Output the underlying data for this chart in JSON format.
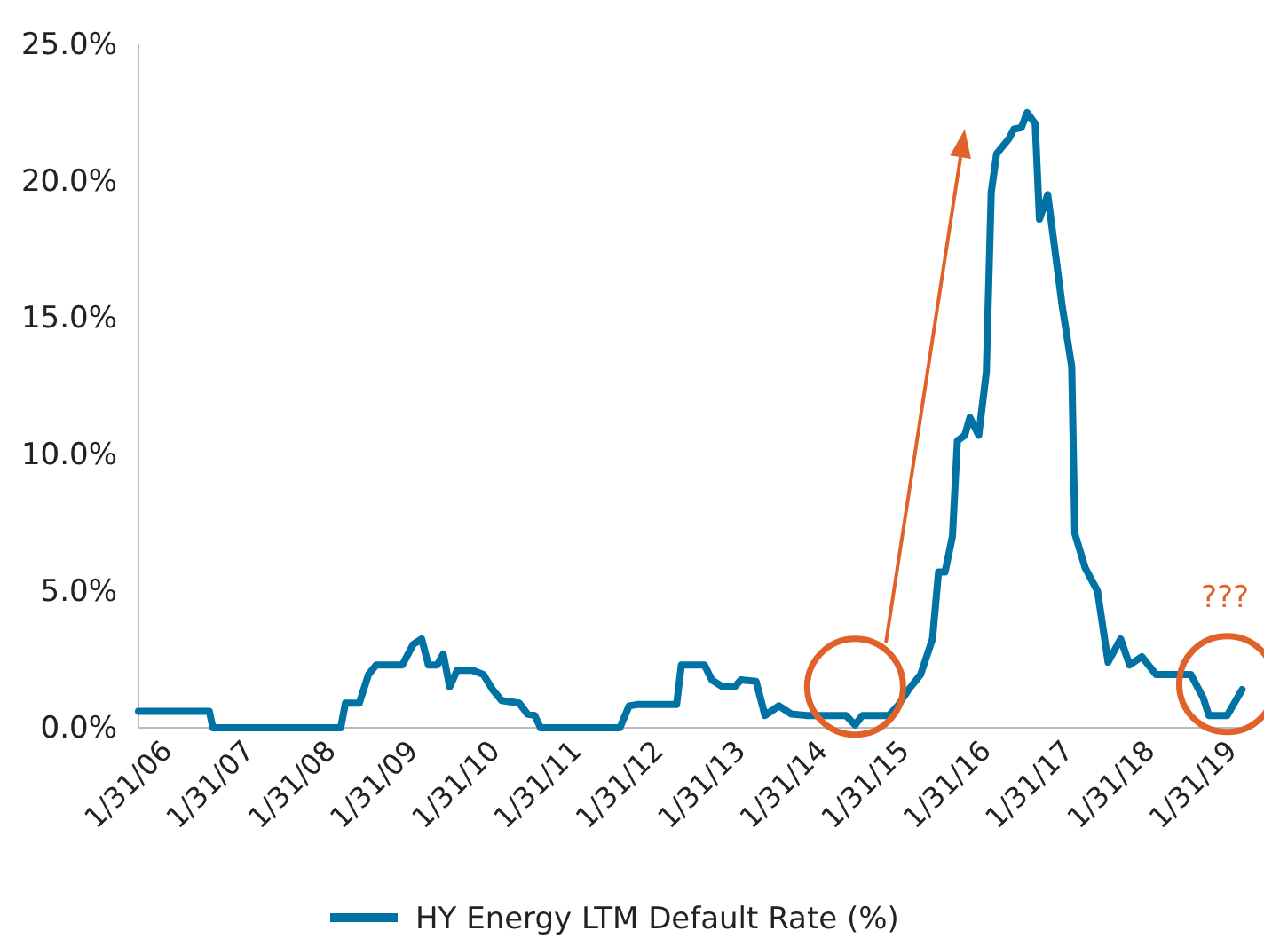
{
  "chart_data": {
    "type": "line",
    "x": [
      "2005-09-16",
      "2006-07-29",
      "2006-08-14",
      "2008-03-06",
      "2008-03-27",
      "2008-05-28",
      "2008-07-08",
      "2008-08-11",
      "2008-12-06",
      "2009-01-23",
      "2009-03-02",
      "2009-04-01",
      "2009-05-11",
      "2009-06-06",
      "2009-07-05",
      "2009-08-07",
      "2009-10-15",
      "2009-12-02",
      "2010-01-12",
      "2010-02-21",
      "2010-05-11",
      "2010-06-17",
      "2010-07-19",
      "2010-08-14",
      "2011-08-03",
      "2011-09-13",
      "2011-10-19",
      "2012-04-12",
      "2012-05-03",
      "2012-08-14",
      "2012-09-16",
      "2012-11-03",
      "2012-12-27",
      "2013-01-23",
      "2013-04-01",
      "2013-05-11",
      "2013-07-12",
      "2013-09-06",
      "2013-11-11",
      "2014-05-07",
      "2014-06-17",
      "2014-07-19",
      "2014-11-14",
      "2014-12-24",
      "2015-02-11",
      "2015-04-05",
      "2015-05-28",
      "2015-06-24",
      "2015-07-23",
      "2015-08-25",
      "2015-09-16",
      "2015-10-19",
      "2015-11-11",
      "2015-12-20",
      "2016-01-23",
      "2016-02-14",
      "2016-03-09",
      "2016-05-03",
      "2016-05-25",
      "2016-06-27",
      "2016-07-23",
      "2016-08-28",
      "2016-09-16",
      "2016-10-23",
      "2016-12-27",
      "2017-02-07",
      "2017-02-21",
      "2017-04-08",
      "2017-06-02",
      "2017-07-19",
      "2017-09-13",
      "2017-10-23",
      "2017-12-17",
      "2018-02-18",
      "2018-07-23",
      "2018-09-16",
      "2018-10-12",
      "2019-01-01",
      "2019-03-09"
    ],
    "series": [
      {
        "name": "HY Energy LTM Default Rate (%)",
        "color": "#0072a3",
        "values": [
          0.6,
          0.6,
          0,
          0,
          0.9,
          0.9,
          1.95,
          2.3,
          2.3,
          3.05,
          3.25,
          2.3,
          2.3,
          2.7,
          1.5,
          2.1,
          2.1,
          1.95,
          1.4,
          1.0,
          0.9,
          0.5,
          0.45,
          0,
          0,
          0.8,
          0.85,
          0.85,
          2.3,
          2.3,
          1.75,
          1.5,
          1.5,
          1.75,
          1.7,
          0.45,
          0.8,
          0.5,
          0.45,
          0.45,
          0.1,
          0.45,
          0.45,
          0.8,
          1.4,
          1.95,
          3.25,
          5.7,
          5.7,
          7.0,
          10.5,
          10.7,
          11.35,
          10.7,
          13.0,
          19.6,
          21.0,
          21.55,
          21.9,
          21.95,
          22.5,
          22.1,
          18.6,
          19.5,
          15.4,
          13.2,
          7.1,
          5.85,
          5.0,
          2.4,
          3.25,
          2.3,
          2.6,
          1.95,
          1.95,
          1.1,
          0.45,
          0.45,
          1.4
        ]
      }
    ],
    "xlim": [
      "2005-09-16",
      "2019-04-20"
    ],
    "xticks": [
      {
        "value": "2006-01-31",
        "label": "1/31/06"
      },
      {
        "value": "2007-01-31",
        "label": "1/31/07"
      },
      {
        "value": "2008-01-31",
        "label": "1/31/08"
      },
      {
        "value": "2009-01-31",
        "label": "1/31/09"
      },
      {
        "value": "2010-01-31",
        "label": "1/31/10"
      },
      {
        "value": "2011-01-31",
        "label": "1/31/11"
      },
      {
        "value": "2012-01-31",
        "label": "1/31/12"
      },
      {
        "value": "2013-01-31",
        "label": "1/31/13"
      },
      {
        "value": "2014-01-31",
        "label": "1/31/14"
      },
      {
        "value": "2015-01-31",
        "label": "1/31/15"
      },
      {
        "value": "2016-01-31",
        "label": "1/31/16"
      },
      {
        "value": "2017-01-31",
        "label": "1/31/17"
      },
      {
        "value": "2018-01-31",
        "label": "1/31/18"
      },
      {
        "value": "2019-01-31",
        "label": "1/31/19"
      }
    ],
    "ylim": [
      0,
      25
    ],
    "yticks": [
      {
        "value": 0,
        "label": "0.0%"
      },
      {
        "value": 5,
        "label": "5.0%"
      },
      {
        "value": 10,
        "label": "10.0%"
      },
      {
        "value": 15,
        "label": "15.0%"
      },
      {
        "value": 20,
        "label": "20.0%"
      },
      {
        "value": 25,
        "label": "25.0%"
      }
    ],
    "annotations": [
      "???"
    ],
    "grid": false,
    "legend": "bottom",
    "marker": "none",
    "line_style": "solid"
  }
}
